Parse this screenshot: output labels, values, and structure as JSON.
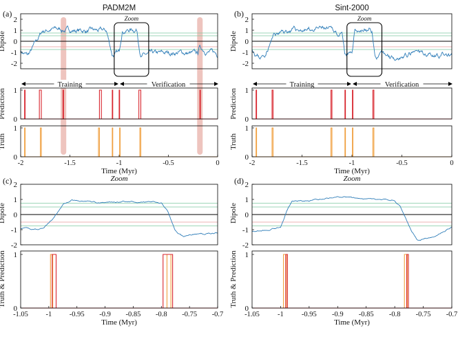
{
  "chart_data": [
    {
      "type": "line",
      "panel_label": "(a)",
      "title": "PADM2M",
      "ylabel": "Dipole",
      "xlim": [
        -2,
        0
      ],
      "ylim": [
        -2.5,
        2.5
      ],
      "yticks": [
        2,
        1,
        0,
        -1,
        -2
      ],
      "zoom_label": "Zoom",
      "phase_labels": {
        "training": "Training",
        "verification": "Verification"
      },
      "threshold_lines": [
        0.75,
        0.5,
        -0.5,
        -0.75
      ]
    },
    {
      "type": "line",
      "panel_label": "(a)",
      "ylabel": "Prediction",
      "xlim": [
        -2,
        0
      ],
      "ylim": [
        0,
        1
      ],
      "yticks": [
        1,
        0
      ],
      "pulses": [
        [
          -1.96,
          -1.955
        ],
        [
          -1.81,
          -1.79
        ],
        [
          -1.57,
          -1.565
        ],
        [
          -1.2,
          -1.18
        ],
        [
          -1.07,
          -1.065
        ],
        [
          -1.0,
          -0.995
        ],
        [
          -0.8,
          -0.78
        ],
        [
          -0.18,
          -0.175
        ]
      ]
    },
    {
      "type": "line",
      "panel_label": "(a)",
      "ylabel": "Truth",
      "xlabel": "Time (Myr)",
      "xlim": [
        -2,
        0
      ],
      "ylim": [
        0,
        1
      ],
      "yticks": [
        1,
        0
      ],
      "xticks": [
        "-2",
        "-1.5",
        "-1",
        "-0.5",
        "0"
      ],
      "pulses": [
        [
          -1.96,
          -1.955
        ],
        [
          -1.8,
          -1.79
        ],
        [
          -1.21,
          -1.2
        ],
        [
          -1.07,
          -1.065
        ],
        [
          -0.995,
          -0.99
        ],
        [
          -0.79,
          -0.78
        ]
      ]
    },
    {
      "type": "line",
      "panel_label": "(b)",
      "title": "Sint-2000",
      "ylabel": "Dipole",
      "xlim": [
        -2,
        0
      ],
      "ylim": [
        -2.5,
        2.5
      ],
      "yticks": [
        2,
        1,
        0,
        -1,
        -2
      ],
      "zoom_label": "Zoom",
      "phase_labels": {
        "training": "Training",
        "verification": "Verification"
      }
    },
    {
      "type": "line",
      "panel_label": "(b)",
      "ylabel": "Prediction",
      "xlim": [
        -2,
        0
      ],
      "ylim": [
        0,
        1
      ],
      "yticks": [
        1,
        0
      ],
      "pulses": [
        [
          -1.96,
          -1.955
        ],
        [
          -1.8,
          -1.79
        ],
        [
          -1.21,
          -1.2
        ],
        [
          -1.07,
          -1.065
        ],
        [
          -0.995,
          -0.99
        ],
        [
          -0.79,
          -0.78
        ]
      ]
    },
    {
      "type": "line",
      "panel_label": "(b)",
      "ylabel": "Truth",
      "xlabel": "Time (Myr)",
      "xlim": [
        -2,
        0
      ],
      "ylim": [
        0,
        1
      ],
      "yticks": [
        1,
        0
      ],
      "xticks": [
        "-2",
        "-1.5",
        "-1",
        "-0.5",
        "0"
      ],
      "pulses": [
        [
          -1.96,
          -1.955
        ],
        [
          -1.8,
          -1.79
        ],
        [
          -1.21,
          -1.2
        ],
        [
          -1.07,
          -1.065
        ],
        [
          -0.995,
          -0.99
        ],
        [
          -0.79,
          -0.78
        ]
      ]
    },
    {
      "type": "line",
      "panel_label": "(c)",
      "title": "Zoom",
      "ylabel": "Dipole",
      "xlim": [
        -1.05,
        -0.7
      ],
      "ylim": [
        -2,
        2
      ],
      "yticks": [
        2,
        1,
        0,
        -1,
        -2
      ]
    },
    {
      "type": "line",
      "panel_label": "(c)",
      "ylabel": "Truth & Prediction",
      "xlabel": "Time (Myr)",
      "xlim": [
        -1.05,
        -0.7
      ],
      "ylim": [
        0,
        1
      ],
      "yticks": [
        1,
        0
      ],
      "xticks": [
        "-1.05",
        "-1",
        "-0.95",
        "-0.9",
        "-0.85",
        "-0.8",
        "-0.75",
        "-0.7"
      ],
      "truth_pulses": [
        [
          -0.997,
          -0.993
        ],
        [
          -0.79,
          -0.783
        ]
      ],
      "prediction_pulses": [
        [
          -0.994,
          -0.987
        ],
        [
          -0.797,
          -0.78
        ]
      ]
    },
    {
      "type": "line",
      "panel_label": "(d)",
      "title": "Zoom",
      "ylabel": "Dipole",
      "xlim": [
        -1.05,
        -0.7
      ],
      "ylim": [
        -2,
        2
      ],
      "yticks": [
        2,
        1,
        0,
        -1,
        -2
      ]
    },
    {
      "type": "line",
      "panel_label": "(d)",
      "ylabel": "Truth & Prediction",
      "xlabel": "Time (Myr)",
      "xlim": [
        -1.05,
        -0.7
      ],
      "ylim": [
        0,
        1
      ],
      "yticks": [
        1,
        0
      ],
      "xticks": [
        "-1.05",
        "-1",
        "-0.95",
        "-0.9",
        "-0.85",
        "-0.8",
        "-0.75",
        "-0.7"
      ],
      "truth_pulses": [
        [
          -0.995,
          -0.99
        ],
        [
          -0.783,
          -0.778
        ]
      ],
      "prediction_pulses": [
        [
          -0.991,
          -0.988
        ],
        [
          -0.779,
          -0.776
        ]
      ]
    }
  ],
  "colors": {
    "dipole": "#2e7db8",
    "prediction": "#d8262e",
    "truth": "#f0a040",
    "threshold_green": "#7cc9a0",
    "threshold_red": "#e89a9a",
    "highlight": "#e8b0a8"
  }
}
